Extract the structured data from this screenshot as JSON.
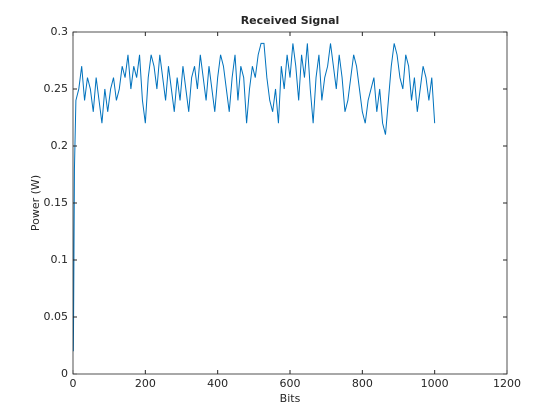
{
  "chart_data": {
    "type": "line",
    "title": "Received Signal",
    "x_label": "Bits",
    "y_label": "Power (W)",
    "xlim": [
      0,
      1200
    ],
    "ylim": [
      0,
      0.3
    ],
    "xticks": [
      0,
      200,
      400,
      600,
      800,
      1000,
      1200
    ],
    "yticks": [
      0,
      0.05,
      0.1,
      0.15,
      0.2,
      0.25,
      0.3
    ],
    "x": [
      1,
      2,
      4,
      8,
      16,
      24,
      32,
      40,
      48,
      56,
      64,
      72,
      80,
      88,
      96,
      104,
      112,
      120,
      128,
      136,
      144,
      152,
      160,
      168,
      176,
      184,
      192,
      200,
      208,
      216,
      224,
      232,
      240,
      248,
      256,
      264,
      272,
      280,
      288,
      296,
      304,
      312,
      320,
      328,
      336,
      344,
      352,
      360,
      368,
      376,
      384,
      392,
      400,
      408,
      416,
      424,
      432,
      440,
      448,
      456,
      464,
      472,
      480,
      488,
      496,
      504,
      512,
      520,
      528,
      536,
      544,
      552,
      560,
      568,
      576,
      584,
      592,
      600,
      608,
      616,
      624,
      632,
      640,
      648,
      656,
      664,
      672,
      680,
      688,
      696,
      704,
      712,
      720,
      728,
      736,
      744,
      752,
      760,
      768,
      776,
      784,
      792,
      800,
      808,
      816,
      824,
      832,
      840,
      848,
      856,
      864,
      872,
      880,
      888,
      896,
      904,
      912,
      920,
      928,
      936,
      944,
      952,
      960,
      968,
      976,
      984,
      992,
      1000
    ],
    "series": [
      {
        "name": "Received Signal",
        "color": "#0072bd",
        "values": [
          0.02,
          0.07,
          0.18,
          0.24,
          0.25,
          0.27,
          0.24,
          0.26,
          0.25,
          0.23,
          0.26,
          0.24,
          0.22,
          0.25,
          0.23,
          0.25,
          0.26,
          0.24,
          0.25,
          0.27,
          0.26,
          0.28,
          0.25,
          0.27,
          0.26,
          0.28,
          0.24,
          0.22,
          0.26,
          0.28,
          0.27,
          0.25,
          0.28,
          0.26,
          0.24,
          0.27,
          0.25,
          0.23,
          0.26,
          0.24,
          0.27,
          0.25,
          0.23,
          0.26,
          0.27,
          0.25,
          0.28,
          0.26,
          0.24,
          0.27,
          0.25,
          0.23,
          0.26,
          0.28,
          0.27,
          0.25,
          0.23,
          0.26,
          0.28,
          0.24,
          0.27,
          0.26,
          0.22,
          0.25,
          0.27,
          0.26,
          0.28,
          0.29,
          0.29,
          0.26,
          0.24,
          0.23,
          0.25,
          0.22,
          0.27,
          0.25,
          0.28,
          0.26,
          0.29,
          0.27,
          0.24,
          0.28,
          0.26,
          0.29,
          0.25,
          0.22,
          0.26,
          0.28,
          0.24,
          0.26,
          0.27,
          0.29,
          0.27,
          0.25,
          0.28,
          0.26,
          0.23,
          0.24,
          0.26,
          0.28,
          0.27,
          0.25,
          0.23,
          0.22,
          0.24,
          0.25,
          0.26,
          0.23,
          0.25,
          0.22,
          0.21,
          0.24,
          0.27,
          0.29,
          0.28,
          0.26,
          0.25,
          0.28,
          0.27,
          0.24,
          0.26,
          0.23,
          0.25,
          0.27,
          0.26,
          0.24,
          0.26,
          0.22
        ]
      }
    ]
  }
}
